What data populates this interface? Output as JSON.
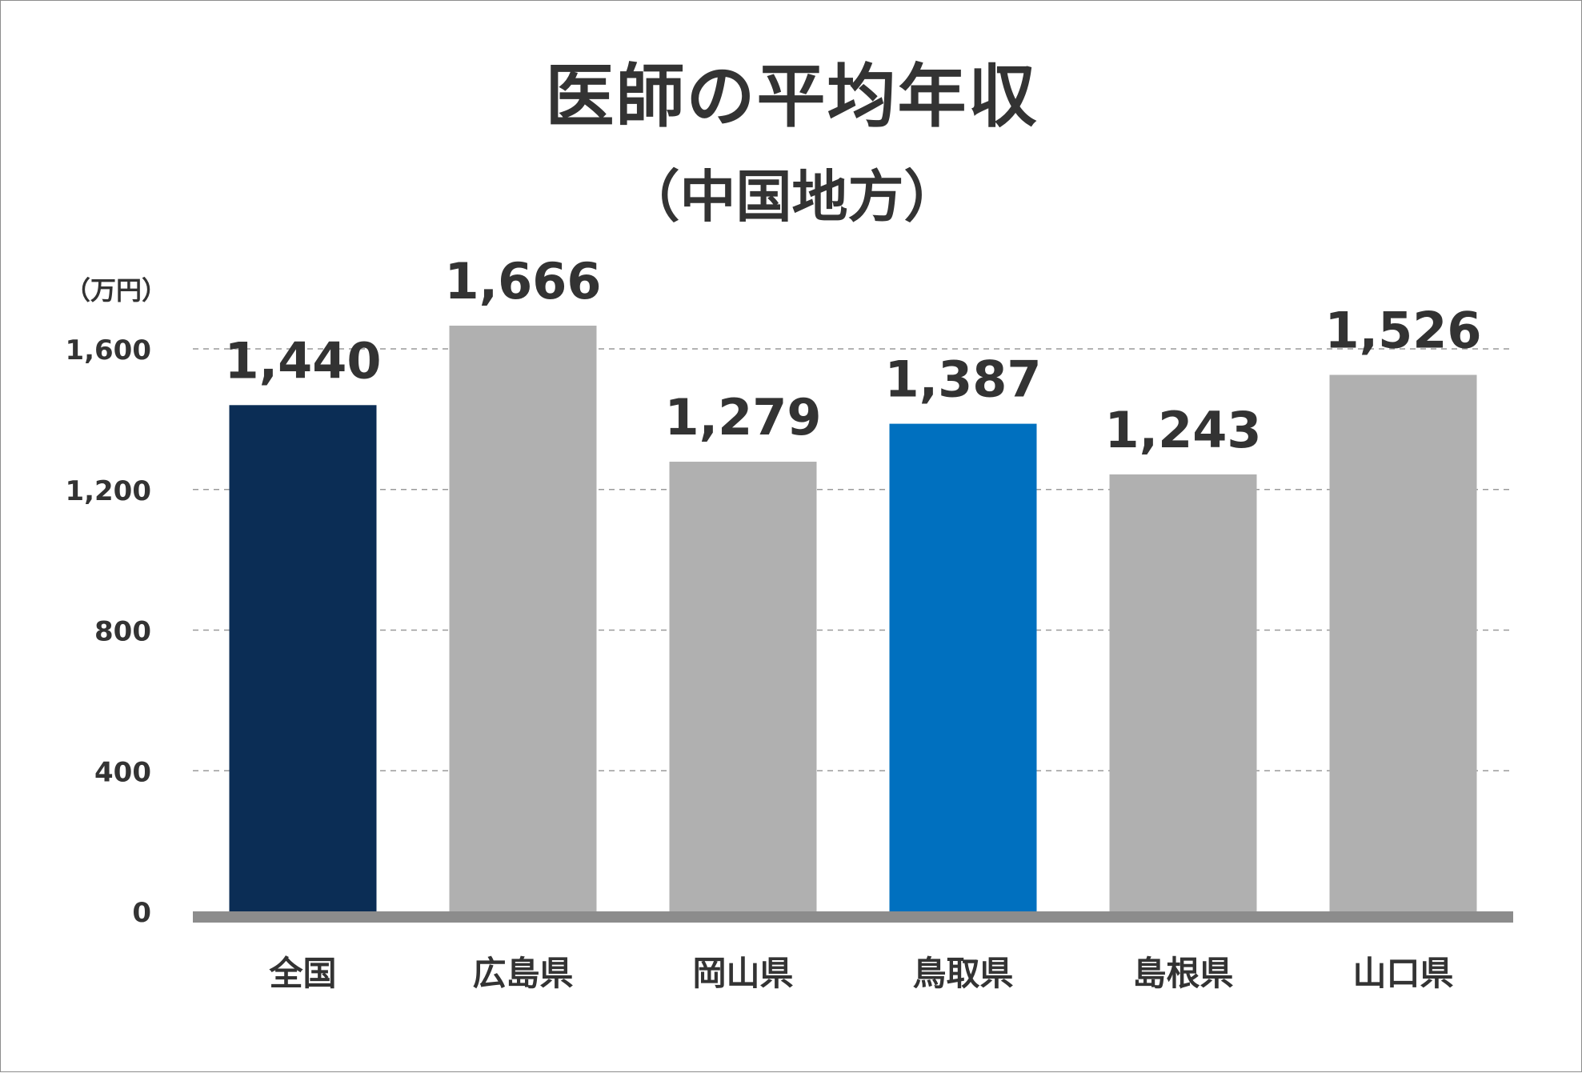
{
  "chart_data": {
    "type": "bar",
    "title": "医師の平均年収",
    "subtitle": "（中国地方）",
    "unit": "（万円）",
    "categories": [
      "全国",
      "広島県",
      "岡山県",
      "鳥取県",
      "島根県",
      "山口県"
    ],
    "values": [
      1440,
      1666,
      1279,
      1387,
      1243,
      1526
    ],
    "value_labels": [
      "1,440",
      "1,666",
      "1,279",
      "1,387",
      "1,243",
      "1,526"
    ],
    "bar_colors": [
      "#0b2d55",
      "#b0b0b0",
      "#b0b0b0",
      "#0070bf",
      "#b0b0b0",
      "#b0b0b0"
    ],
    "ylim": [
      0,
      1600
    ],
    "yticks": [
      0,
      400,
      800,
      1200,
      1600
    ],
    "ytick_labels": [
      "0",
      "400",
      "800",
      "1,200",
      "1,600"
    ],
    "grid": true,
    "grid_style": "dashed",
    "legend": "none"
  },
  "colors": {
    "text": "#333333",
    "axis": "#8c8c8c",
    "grid": "#9a9a9a",
    "highlight_national": "#0b2d55",
    "highlight_tottori": "#0070bf",
    "default_bar": "#b0b0b0"
  }
}
